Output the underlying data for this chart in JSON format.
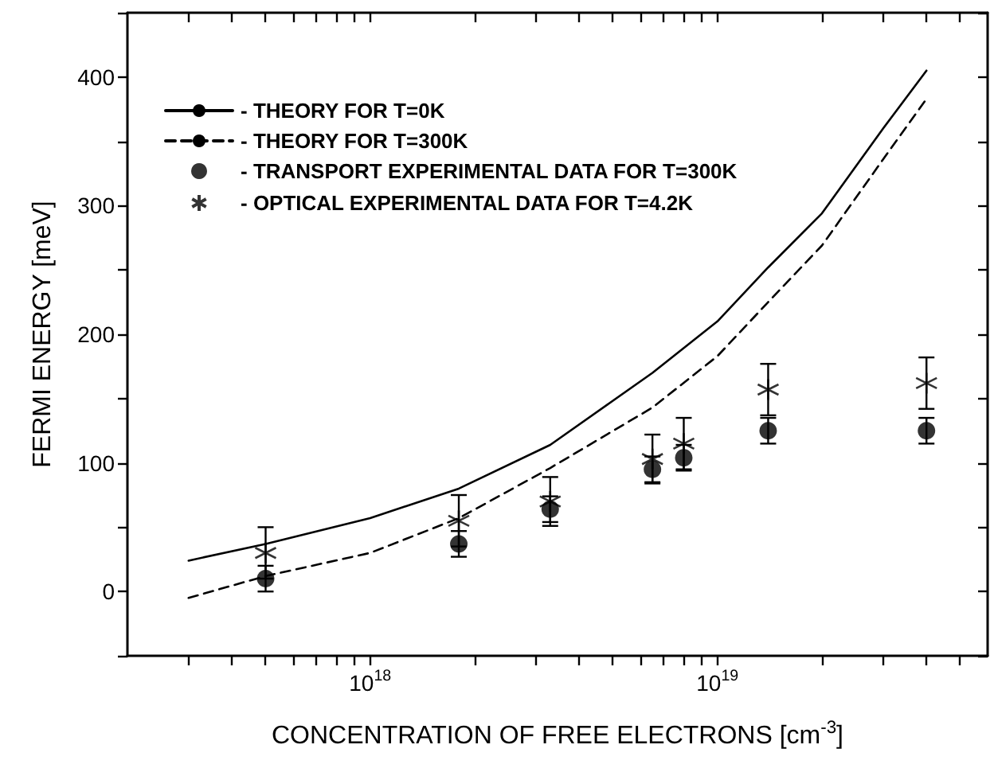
{
  "chart_data": {
    "type": "scatter",
    "xlabel": "CONCENTRATION OF FREE ELECTRONS [cm$^{-3}$]",
    "ylabel": "FERMI ENERGY [meV]",
    "log": "x",
    "xlim": [
      2e+17,
      6e+19
    ],
    "ylim": [
      -50,
      450
    ],
    "xticks": [
      {
        "value": 2e+17,
        "label": null
      },
      {
        "value": 3e+17,
        "label": null
      },
      {
        "value": 4e+17,
        "label": null
      },
      {
        "value": 5e+17,
        "label": null
      },
      {
        "value": 6e+17,
        "label": null
      },
      {
        "value": 7e+17,
        "label": null
      },
      {
        "value": 8e+17,
        "label": null
      },
      {
        "value": 9e+17,
        "label": null
      },
      {
        "value": 1e+18,
        "label": "10$^{18}$"
      },
      {
        "value": 2e+18,
        "label": null
      },
      {
        "value": 3e+18,
        "label": null
      },
      {
        "value": 4e+18,
        "label": null
      },
      {
        "value": 5e+18,
        "label": null
      },
      {
        "value": 6e+18,
        "label": null
      },
      {
        "value": 7e+18,
        "label": null
      },
      {
        "value": 8e+18,
        "label": null
      },
      {
        "value": 9e+18,
        "label": null
      },
      {
        "value": 1e+19,
        "label": "10$^{19}$"
      },
      {
        "value": 2e+19,
        "label": null
      },
      {
        "value": 3e+19,
        "label": null
      },
      {
        "value": 4e+19,
        "label": null
      },
      {
        "value": 5e+19,
        "label": null
      }
    ],
    "yticks": [
      {
        "value": -50,
        "label": null
      },
      0,
      {
        "value": 50,
        "label": null
      },
      100,
      {
        "value": 150,
        "label": null
      },
      200,
      {
        "value": 250,
        "label": null
      },
      300,
      {
        "value": 350,
        "label": null
      },
      400,
      {
        "value": 450,
        "label": null
      }
    ],
    "grid": false,
    "legend": "top left",
    "series": [
      {
        "name": "- THEORY FOR T=0K",
        "type": "line",
        "line_style": "solid",
        "marker": "none",
        "color": "#000000",
        "x": [
          3e+17,
          5e+17,
          1e+18,
          1.8e+18,
          3.3e+18,
          6.5e+18,
          1e+19,
          1.4e+19,
          2e+19,
          3e+19,
          4e+19
        ],
        "values": [
          24,
          37,
          57,
          80,
          114,
          170,
          210,
          252,
          294,
          360,
          405
        ]
      },
      {
        "name": "- THEORY FOR T=300K",
        "type": "line",
        "line_style": "dashed",
        "marker": "none",
        "color": "#000000",
        "x": [
          3e+17,
          5e+17,
          1e+18,
          1.8e+18,
          3.3e+18,
          6.5e+18,
          1e+19,
          1.4e+19,
          2e+19,
          3e+19,
          4e+19
        ],
        "values": [
          -5,
          12,
          30,
          57,
          96,
          143,
          183,
          225,
          269,
          336,
          383
        ]
      },
      {
        "name": "- TRANSPORT EXPERIMENTAL DATA FOR T=300K",
        "marker": "circle",
        "color": "#000000",
        "x": [
          5e+17,
          1.8e+18,
          3.3e+18,
          6.5e+18,
          8e+18,
          1.4e+19,
          4e+19
        ],
        "values": [
          10,
          37,
          64,
          95,
          104,
          125,
          125
        ],
        "errors": [
          10,
          10,
          10,
          10,
          10,
          10,
          10
        ]
      },
      {
        "name": "- OPTICAL EXPERIMENTAL DATA FOR T=4.2K",
        "marker": "cross",
        "color": "#000000",
        "x": [
          5e+17,
          1.8e+18,
          3.3e+18,
          6.5e+18,
          8e+18,
          1.4e+19,
          4e+19
        ],
        "values": [
          30,
          55,
          70,
          103,
          115,
          157,
          162
        ],
        "errors": [
          20,
          20,
          19,
          19,
          20,
          20,
          20
        ]
      }
    ]
  }
}
